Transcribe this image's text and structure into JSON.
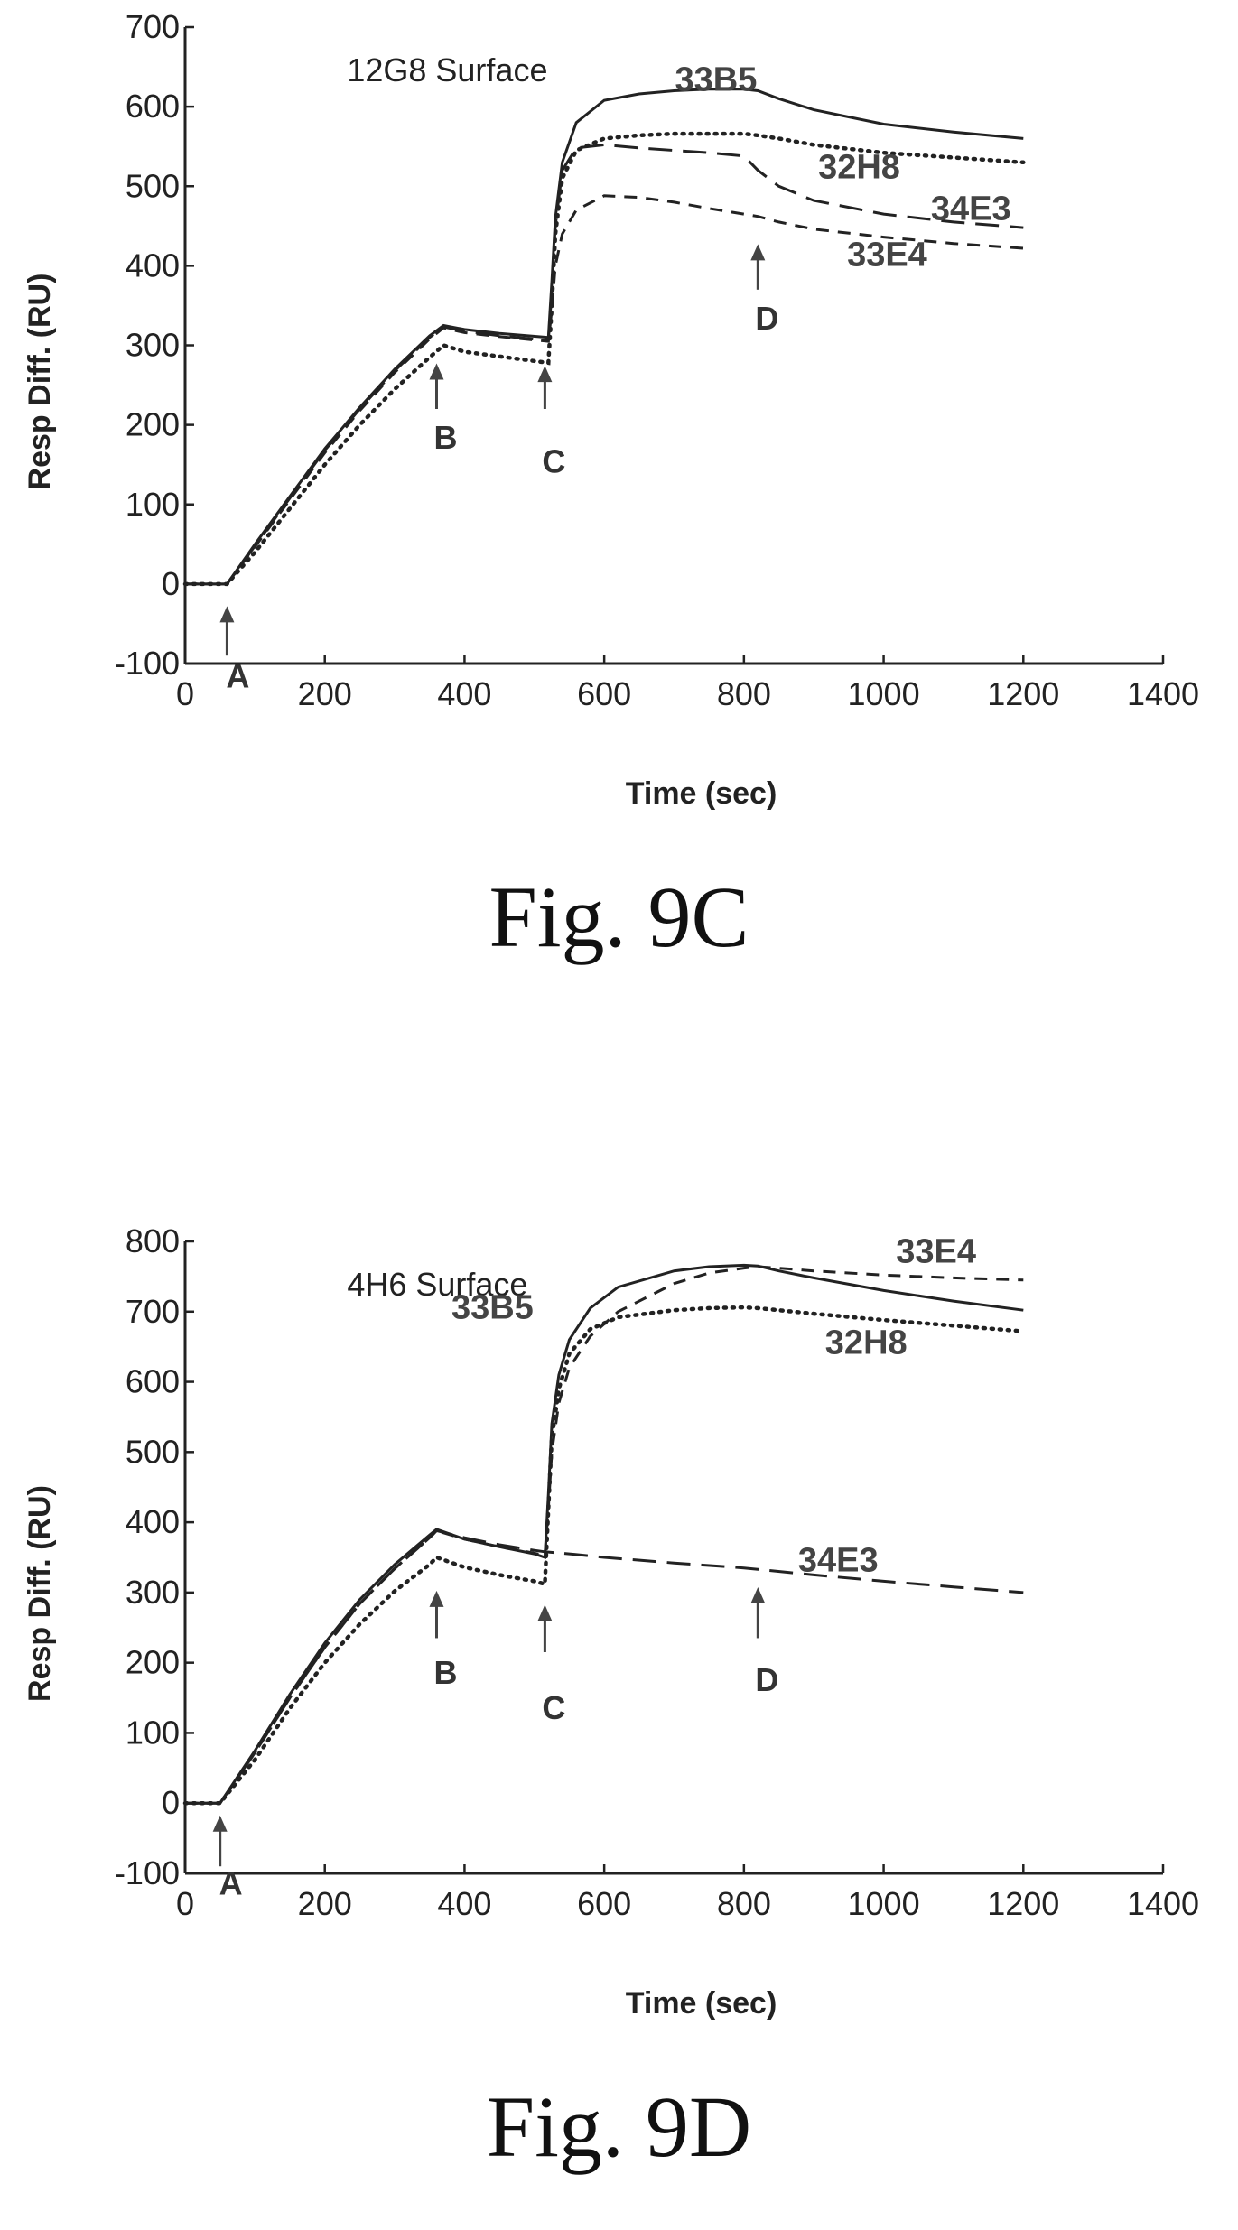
{
  "chart_data": [
    {
      "type": "line",
      "title": "",
      "annotation": "12G8 Surface",
      "xlabel": "Time (sec)",
      "ylabel": "Resp Diff. (RU)",
      "xlim": [
        0,
        1400
      ],
      "ylim": [
        -100,
        700
      ],
      "xticks": [
        0,
        200,
        400,
        600,
        800,
        1000,
        1200,
        1400
      ],
      "yticks": [
        -100,
        0,
        100,
        200,
        300,
        400,
        500,
        600,
        700
      ],
      "grid": false,
      "series": [
        {
          "name": "33B5",
          "style": "solid",
          "x": [
            0,
            60,
            100,
            150,
            200,
            250,
            300,
            350,
            370,
            400,
            450,
            520,
            525,
            530,
            540,
            560,
            600,
            650,
            700,
            750,
            800,
            820,
            850,
            900,
            1000,
            1100,
            1200
          ],
          "y": [
            0,
            0,
            50,
            110,
            170,
            222,
            270,
            312,
            325,
            320,
            315,
            310,
            380,
            460,
            530,
            580,
            608,
            616,
            620,
            622,
            622,
            620,
            610,
            596,
            578,
            568,
            560
          ]
        },
        {
          "name": "32H8",
          "style": "dotted",
          "x": [
            0,
            60,
            100,
            150,
            200,
            250,
            300,
            350,
            370,
            400,
            450,
            520,
            525,
            530,
            540,
            560,
            600,
            650,
            700,
            750,
            800,
            820,
            850,
            900,
            1000,
            1100,
            1200
          ],
          "y": [
            0,
            0,
            40,
            95,
            150,
            200,
            245,
            285,
            300,
            292,
            286,
            278,
            350,
            440,
            510,
            545,
            560,
            564,
            566,
            566,
            566,
            564,
            560,
            552,
            542,
            536,
            530
          ]
        },
        {
          "name": "34E3",
          "style": "dashed",
          "x": [
            0,
            60,
            100,
            150,
            200,
            250,
            300,
            350,
            370,
            400,
            450,
            520,
            525,
            530,
            540,
            560,
            600,
            650,
            700,
            750,
            800,
            820,
            850,
            900,
            1000,
            1100,
            1200
          ],
          "y": [
            0,
            0,
            48,
            108,
            168,
            220,
            268,
            310,
            323,
            318,
            312,
            306,
            370,
            450,
            520,
            548,
            552,
            548,
            545,
            542,
            538,
            520,
            500,
            482,
            465,
            455,
            448
          ]
        },
        {
          "name": "33E4",
          "style": "short-dashed",
          "x": [
            0,
            60,
            100,
            150,
            200,
            250,
            300,
            350,
            370,
            400,
            450,
            520,
            525,
            530,
            540,
            560,
            600,
            650,
            700,
            750,
            800,
            820,
            850,
            900,
            1000,
            1100,
            1200
          ],
          "y": [
            0,
            0,
            47,
            106,
            165,
            218,
            266,
            308,
            322,
            316,
            311,
            305,
            345,
            400,
            440,
            470,
            488,
            486,
            480,
            472,
            465,
            462,
            455,
            446,
            436,
            428,
            422
          ]
        }
      ],
      "series_labels": [
        {
          "text": "33B5",
          "x": 760,
          "y": 620
        },
        {
          "text": "32H8",
          "x": 965,
          "y": 510
        },
        {
          "text": "34E3",
          "x": 1125,
          "y": 458
        },
        {
          "text": "33E4",
          "x": 1005,
          "y": 400
        }
      ],
      "markers": [
        {
          "label": "A",
          "x": 60,
          "from": -90,
          "to": -30,
          "text_y": -130
        },
        {
          "label": "B",
          "x": 360,
          "from": 220,
          "to": 275,
          "text_y": 170
        },
        {
          "label": "C",
          "x": 515,
          "from": 220,
          "to": 272,
          "text_y": 140
        },
        {
          "label": "D",
          "x": 820,
          "from": 370,
          "to": 425,
          "text_y": 320
        }
      ],
      "caption": "Fig. 9C"
    },
    {
      "type": "line",
      "title": "",
      "annotation": "4H6 Surface",
      "xlabel": "Time (sec)",
      "ylabel": "Resp Diff. (RU)",
      "xlim": [
        0,
        1400
      ],
      "ylim": [
        -100,
        800
      ],
      "xticks": [
        0,
        200,
        400,
        600,
        800,
        1000,
        1200,
        1400
      ],
      "yticks": [
        -100,
        0,
        100,
        200,
        300,
        400,
        500,
        600,
        700,
        800
      ],
      "grid": false,
      "series": [
        {
          "name": "33B5",
          "style": "solid",
          "x": [
            0,
            50,
            100,
            150,
            200,
            250,
            300,
            350,
            360,
            400,
            450,
            500,
            515,
            520,
            525,
            535,
            550,
            580,
            620,
            700,
            750,
            800,
            820,
            850,
            900,
            1000,
            1100,
            1200
          ],
          "y": [
            0,
            0,
            75,
            155,
            228,
            290,
            340,
            382,
            390,
            376,
            365,
            355,
            350,
            440,
            540,
            610,
            660,
            705,
            735,
            758,
            764,
            766,
            765,
            758,
            748,
            730,
            715,
            702
          ]
        },
        {
          "name": "32H8",
          "style": "dotted",
          "x": [
            0,
            50,
            100,
            150,
            200,
            250,
            300,
            350,
            360,
            400,
            450,
            500,
            515,
            520,
            525,
            535,
            550,
            580,
            620,
            700,
            750,
            800,
            820,
            850,
            900,
            1000,
            1100,
            1200
          ],
          "y": [
            0,
            0,
            62,
            135,
            200,
            255,
            302,
            340,
            350,
            336,
            325,
            316,
            312,
            420,
            520,
            590,
            640,
            675,
            692,
            702,
            705,
            706,
            705,
            702,
            697,
            688,
            680,
            672
          ]
        },
        {
          "name": "34E3",
          "style": "dashed",
          "x": [
            0,
            50,
            100,
            150,
            200,
            250,
            300,
            350,
            360,
            400,
            450,
            500,
            515,
            550,
            600,
            700,
            800,
            820,
            900,
            1000,
            1100,
            1200
          ],
          "y": [
            0,
            0,
            72,
            150,
            222,
            284,
            334,
            378,
            388,
            378,
            368,
            360,
            358,
            355,
            350,
            342,
            335,
            333,
            325,
            316,
            308,
            300
          ]
        },
        {
          "name": "33E4",
          "style": "short-dashed",
          "x": [
            0,
            50,
            100,
            150,
            200,
            250,
            300,
            350,
            360,
            400,
            450,
            500,
            515,
            520,
            525,
            535,
            550,
            580,
            620,
            700,
            750,
            800,
            820,
            850,
            900,
            1000,
            1100,
            1200
          ],
          "y": [
            0,
            0,
            72,
            150,
            222,
            284,
            334,
            378,
            388,
            376,
            365,
            356,
            352,
            420,
            500,
            570,
            620,
            665,
            700,
            740,
            755,
            762,
            764,
            762,
            758,
            752,
            748,
            745
          ]
        }
      ],
      "series_labels": [
        {
          "text": "33E4",
          "x": 1075,
          "y": 770
        },
        {
          "text": "33B5",
          "x": 440,
          "y": 690
        },
        {
          "text": "32H8",
          "x": 975,
          "y": 640
        },
        {
          "text": "34E3",
          "x": 935,
          "y": 330
        }
      ],
      "markers": [
        {
          "label": "A",
          "x": 50,
          "from": -90,
          "to": -20,
          "text_y": -130
        },
        {
          "label": "B",
          "x": 360,
          "from": 235,
          "to": 300,
          "text_y": 170
        },
        {
          "label": "C",
          "x": 515,
          "from": 215,
          "to": 280,
          "text_y": 120
        },
        {
          "label": "D",
          "x": 820,
          "from": 235,
          "to": 305,
          "text_y": 160
        }
      ],
      "caption": "Fig. 9D"
    }
  ]
}
